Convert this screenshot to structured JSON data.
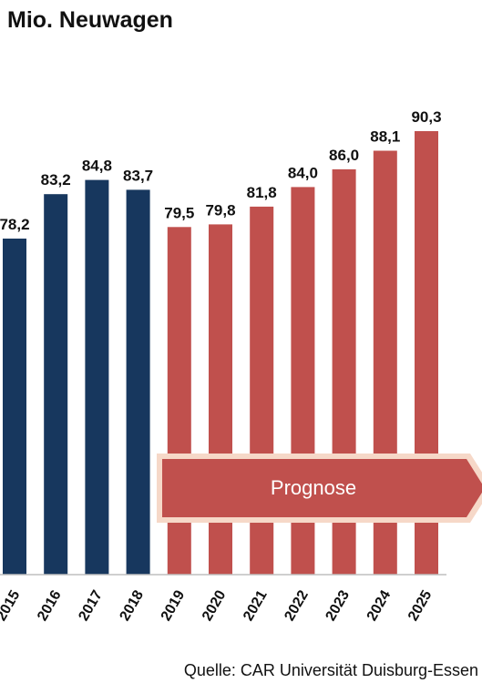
{
  "header": {
    "title": "Mio. Neuwagen"
  },
  "footer": {
    "source": "Quelle: CAR Universität Duisburg-Essen"
  },
  "annotation": {
    "prognose_label": "Prognose"
  },
  "colors": {
    "historic": "#17375e",
    "forecast": "#c0504d",
    "arrow_fill": "#c0504d",
    "arrow_border": "#f6d8c8"
  },
  "chart_data": {
    "type": "bar",
    "title": "Mio. Neuwagen",
    "xlabel": "",
    "ylabel": "",
    "categories": [
      "2015",
      "2016",
      "2017",
      "2018",
      "2019",
      "2020",
      "2021",
      "2022",
      "2023",
      "2024",
      "2025"
    ],
    "values": [
      78.2,
      83.2,
      84.8,
      83.7,
      79.5,
      79.8,
      81.8,
      84.0,
      86.0,
      88.1,
      90.3
    ],
    "value_labels": [
      "78,2",
      "83,2",
      "84,8",
      "83,7",
      "79,5",
      "79,8",
      "81,8",
      "84,0",
      "86,0",
      "88,1",
      "90,3"
    ],
    "forecast_from": "2019",
    "grid": false,
    "legend": "none"
  }
}
